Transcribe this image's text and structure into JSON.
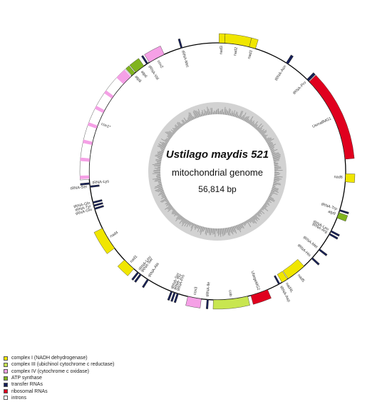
{
  "center": {
    "species": "Ustilago maydis 521",
    "subtitle": "mitochondrial genome",
    "length": "56,814 bp"
  },
  "legend": [
    {
      "key": "complex1",
      "label": "complex I (NADH dehydrogenase)",
      "color": "#f0e600"
    },
    {
      "key": "complex3",
      "label": "complex III (ubichinol cytochrome c reductase)",
      "color": "#c8e650"
    },
    {
      "key": "complex4",
      "label": "complex IV (cytochrome c oxidase)",
      "color": "#f5a0e6"
    },
    {
      "key": "atp",
      "label": "ATP synthase",
      "color": "#80b41e"
    },
    {
      "key": "trna",
      "label": "transfer RNAs",
      "color": "#141e5a"
    },
    {
      "key": "rrna",
      "label": "ribosomal RNAs",
      "color": "#e0001e"
    },
    {
      "key": "intron",
      "label": "introns",
      "color": "#ffffff"
    }
  ],
  "features": [
    {
      "label": "nad3",
      "type": "complex1",
      "start": 0.2,
      "end": 0.9,
      "strand": "outer"
    },
    {
      "label": "nad2",
      "type": "complex1",
      "start": 0.9,
      "end": 4.0,
      "strand": "outer"
    },
    {
      "label": "nad3",
      "type": "complex1",
      "start": 4.0,
      "end": 4.8,
      "strand": "outer"
    },
    {
      "label": "tRNA-Asn",
      "type": "trna",
      "start": 9.0,
      "end": 9.3,
      "strand": "outer"
    },
    {
      "label": "tRNA-Pro",
      "type": "trna",
      "start": 12.3,
      "end": 12.6,
      "strand": "outer"
    },
    {
      "label": "UsmallMG1",
      "type": "rrna",
      "start": 12.7,
      "end": 23.5,
      "strand": "outer"
    },
    {
      "label": "nad6",
      "type": "complex1",
      "start": 25.3,
      "end": 26.3,
      "strand": "outer"
    },
    {
      "label": "tRNA-Trp",
      "type": "trna",
      "start": 29.8,
      "end": 30.0,
      "strand": "outer"
    },
    {
      "label": "atp9",
      "type": "atp",
      "start": 30.2,
      "end": 30.9,
      "strand": "outer"
    },
    {
      "label": "tRNA-Leu",
      "type": "trna",
      "start": 32.6,
      "end": 32.8,
      "strand": "outer"
    },
    {
      "label": "tRNA-Arg",
      "type": "trna",
      "start": 33.0,
      "end": 33.2,
      "strand": "outer"
    },
    {
      "label": "tRNA-Met",
      "type": "trna",
      "start": 35.3,
      "end": 35.5,
      "strand": "outer"
    },
    {
      "label": "tRNA-His",
      "type": "trna",
      "start": 36.7,
      "end": 36.9,
      "strand": "outer"
    },
    {
      "label": "nad5",
      "type": "complex1",
      "start": 38.2,
      "end": 40.7,
      "strand": "inner"
    },
    {
      "label": "nad4L",
      "type": "complex1",
      "start": 40.8,
      "end": 41.6,
      "strand": "inner"
    },
    {
      "label": "tRNA-Asp",
      "type": "trna",
      "start": 41.9,
      "end": 42.1,
      "strand": "inner"
    },
    {
      "label": "UlargeMG2",
      "type": "rrna",
      "start": 43.6,
      "end": 45.8,
      "strand": "outer"
    },
    {
      "label": "cob",
      "type": "complex3",
      "start": 46.2,
      "end": 50.5,
      "strand": "outer"
    },
    {
      "label": "tRNA-Ile",
      "type": "trna",
      "start": 51.1,
      "end": 51.3,
      "strand": "outer"
    },
    {
      "label": "cox3",
      "type": "complex4",
      "start": 52.0,
      "end": 53.7,
      "strand": "outer"
    },
    {
      "label": "tRNA-Pro",
      "type": "trna",
      "start": 54.9,
      "end": 55.1,
      "strand": "outer"
    },
    {
      "label": "tRNA-Thr",
      "type": "trna",
      "start": 55.3,
      "end": 55.5,
      "strand": "outer"
    },
    {
      "label": "tRNA-Ser",
      "type": "trna",
      "start": 55.7,
      "end": 55.9,
      "strand": "outer"
    },
    {
      "label": "tRNA-Ala",
      "type": "trna",
      "start": 59.0,
      "end": 59.2,
      "strand": "outer"
    },
    {
      "label": "tRNA-Ser",
      "type": "trna",
      "start": 60.1,
      "end": 60.3,
      "strand": "outer"
    },
    {
      "label": "tRNA-Leu",
      "type": "trna",
      "start": 60.5,
      "end": 60.7,
      "strand": "outer"
    },
    {
      "label": "nad1",
      "type": "complex1",
      "start": 61.3,
      "end": 62.9,
      "strand": "outer"
    },
    {
      "label": "nad4",
      "type": "complex1",
      "start": 64.8,
      "end": 67.7,
      "strand": "outer"
    },
    {
      "label": "tRNA-Glu",
      "type": "trna",
      "start": 70.2,
      "end": 70.4,
      "strand": "inner"
    },
    {
      "label": "tRNA-Tyr",
      "type": "trna",
      "start": 70.6,
      "end": 70.8,
      "strand": "inner"
    },
    {
      "label": "tRNA-Gln",
      "type": "trna",
      "start": 71.0,
      "end": 71.2,
      "strand": "inner"
    },
    {
      "label": "tRNA-Ser",
      "type": "trna",
      "start": 73.0,
      "end": 73.2,
      "strand": "inner"
    },
    {
      "label": "tRNA-Lys",
      "type": "trna",
      "start": 73.4,
      "end": 73.6,
      "strand": "outer"
    },
    {
      "label": "cox1*",
      "type": "intron",
      "start": 74.0,
      "end": 88.3,
      "strand": "outer"
    },
    {
      "label": "atp8",
      "type": "atp",
      "start": 88.4,
      "end": 88.9,
      "strand": "outer"
    },
    {
      "label": "atp6",
      "type": "atp",
      "start": 89.0,
      "end": 90.3,
      "strand": "outer"
    },
    {
      "label": "tRNA-Val",
      "type": "trna",
      "start": 90.7,
      "end": 90.9,
      "strand": "outer"
    },
    {
      "label": "cox2",
      "type": "complex4",
      "start": 91.1,
      "end": 93.2,
      "strand": "outer"
    },
    {
      "label": "tRNA-Met",
      "type": "trna",
      "start": 95.4,
      "end": 95.6,
      "strand": "outer"
    }
  ],
  "exons": [
    {
      "type": "complex4",
      "start": 74.1,
      "end": 74.5
    },
    {
      "type": "complex4",
      "start": 76.2,
      "end": 76.6
    },
    {
      "type": "complex4",
      "start": 78.3,
      "end": 78.7
    },
    {
      "type": "complex4",
      "start": 80.4,
      "end": 80.8
    },
    {
      "type": "complex4",
      "start": 82.5,
      "end": 82.9
    },
    {
      "type": "complex4",
      "start": 84.6,
      "end": 85.0
    },
    {
      "type": "complex4",
      "start": 86.9,
      "end": 88.2
    }
  ]
}
